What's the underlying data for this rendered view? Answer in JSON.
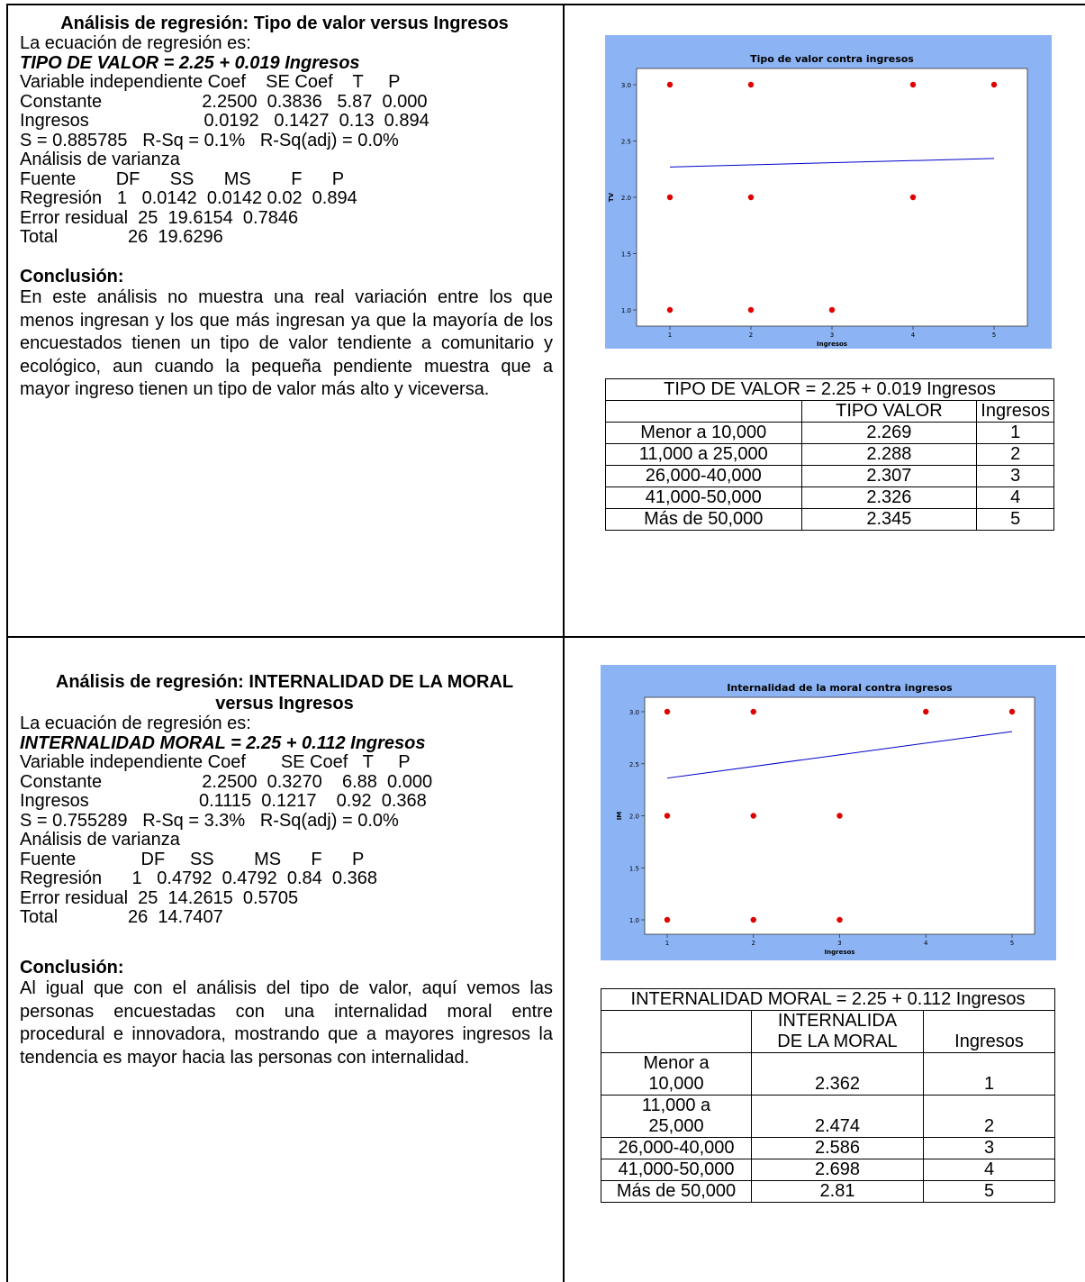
{
  "sections": [
    {
      "title_lines": [
        "Análisis de regresión: Tipo de valor versus Ingresos"
      ],
      "intro": "La ecuación de regresión es:",
      "equation": "TIPO DE VALOR = 2.25 + 0.019 Ingresos",
      "stats_lines": [
        "Variable independiente Coef    SE Coef    T     P",
        "Constante                    2.2500  0.3836   5.87  0.000",
        "Ingresos                       0.0192   0.1427  0.13  0.894",
        "S = 0.885785   R-Sq = 0.1%   R-Sq(adj) = 0.0%",
        "Análisis de varianza",
        "Fuente        DF      SS      MS        F      P",
        "Regresión   1   0.0142  0.0142 0.02  0.894",
        "Error residual  25  19.6154  0.7846",
        "Total              26  19.6296"
      ],
      "conclusion_heading": "Conclusión:",
      "conclusion": "En este análisis no muestra una real variación entre los que menos ingresan y los que más ingresan ya que la mayoría de los encuestados tienen un tipo de valor tendiente a comunitario y ecológico, aun cuando la pequeña pendiente muestra que a mayor ingreso tienen un tipo de valor más alto y viceversa.",
      "table": {
        "caption": "TIPO DE VALOR = 2.25 + 0.019 Ingresos",
        "header": [
          "",
          "TIPO VALOR",
          "Ingresos"
        ],
        "rows": [
          [
            "Menor a 10,000",
            "2.269",
            "1"
          ],
          [
            "11,000 a 25,000",
            "2.288",
            "2"
          ],
          [
            "26,000-40,000",
            "2.307",
            "3"
          ],
          [
            "41,000-50,000",
            "2.326",
            "4"
          ],
          [
            "Más de 50,000",
            "2.345",
            "5"
          ]
        ]
      }
    },
    {
      "title_lines": [
        "Análisis de regresión: INTERNALIDAD DE LA MORAL",
        "versus Ingresos"
      ],
      "intro": "La ecuación de regresión es:",
      "equation": "INTERNALIDAD MORAL = 2.25 + 0.112 Ingresos",
      "stats_lines": [
        "Variable independiente Coef       SE Coef   T     P",
        "Constante                    2.2500  0.3270    6.88  0.000",
        "Ingresos                      0.1115  0.1217    0.92  0.368",
        "S = 0.755289   R-Sq = 3.3%   R-Sq(adj) = 0.0%",
        "Análisis de varianza",
        "Fuente             DF     SS        MS      F      P",
        "Regresión      1   0.4792  0.4792  0.84  0.368",
        "Error residual  25  14.2615  0.5705",
        "Total              26  14.7407"
      ],
      "conclusion_heading": "Conclusión:",
      "conclusion": "Al igual que con el análisis del tipo de valor, aquí vemos las personas encuestadas con una internalidad moral entre procedural e innovadora, mostrando que a mayores ingresos la tendencia es mayor hacia las personas con internalidad.",
      "table": {
        "caption": "INTERNALIDAD MORAL = 2.25 + 0.112 Ingresos",
        "header": [
          "",
          "INTERNALIDA DE LA MORAL",
          "Ingresos"
        ],
        "rows": [
          [
            "Menor a 10,000",
            "2.362",
            "1"
          ],
          [
            "11,000 a 25,000",
            "2.474",
            "2"
          ],
          [
            "26,000-40,000",
            "2.586",
            "3"
          ],
          [
            "41,000-50,000",
            "2.698",
            "4"
          ],
          [
            "Más de 50,000",
            "2.81",
            "5"
          ]
        ]
      }
    }
  ],
  "chart_data": [
    {
      "type": "scatter",
      "title": "Tipo de valor contra ingresos",
      "xlabel": "Ingresos",
      "ylabel": "TV",
      "xlim": [
        1,
        5
      ],
      "ylim": [
        1.0,
        3.0
      ],
      "xticks": [
        "1",
        "2",
        "3",
        "4",
        "5"
      ],
      "yticks": [
        "1.0",
        "1.5",
        "2.0",
        "2.5",
        "3.0"
      ],
      "points": [
        [
          1,
          3
        ],
        [
          2,
          3
        ],
        [
          4,
          3
        ],
        [
          5,
          3
        ],
        [
          1,
          2
        ],
        [
          2,
          2
        ],
        [
          4,
          2
        ],
        [
          1,
          1
        ],
        [
          2,
          1
        ],
        [
          3,
          1
        ]
      ],
      "fit_line": {
        "intercept": 2.25,
        "slope": 0.019,
        "x": [
          1,
          5
        ]
      },
      "colors": {
        "background": "#8cb4f5",
        "plot": "#ffffff",
        "points": "#e00000",
        "line": "#0000cc"
      }
    },
    {
      "type": "scatter",
      "title": "Internalidad de la moral contra ingresos",
      "xlabel": "Ingresos",
      "ylabel": "IM",
      "xlim": [
        1,
        5
      ],
      "ylim": [
        1.0,
        3.0
      ],
      "xticks": [
        "1",
        "2",
        "3",
        "4",
        "5"
      ],
      "yticks": [
        "1.0",
        "1.5",
        "2.0",
        "2.5",
        "3.0"
      ],
      "points": [
        [
          1,
          3
        ],
        [
          2,
          3
        ],
        [
          4,
          3
        ],
        [
          5,
          3
        ],
        [
          1,
          2
        ],
        [
          2,
          2
        ],
        [
          3,
          2
        ],
        [
          1,
          1
        ],
        [
          2,
          1
        ],
        [
          3,
          1
        ]
      ],
      "fit_line": {
        "intercept": 2.25,
        "slope": 0.112,
        "x": [
          1,
          5
        ]
      },
      "colors": {
        "background": "#8cb4f5",
        "plot": "#ffffff",
        "points": "#e00000",
        "line": "#0000cc"
      }
    }
  ]
}
